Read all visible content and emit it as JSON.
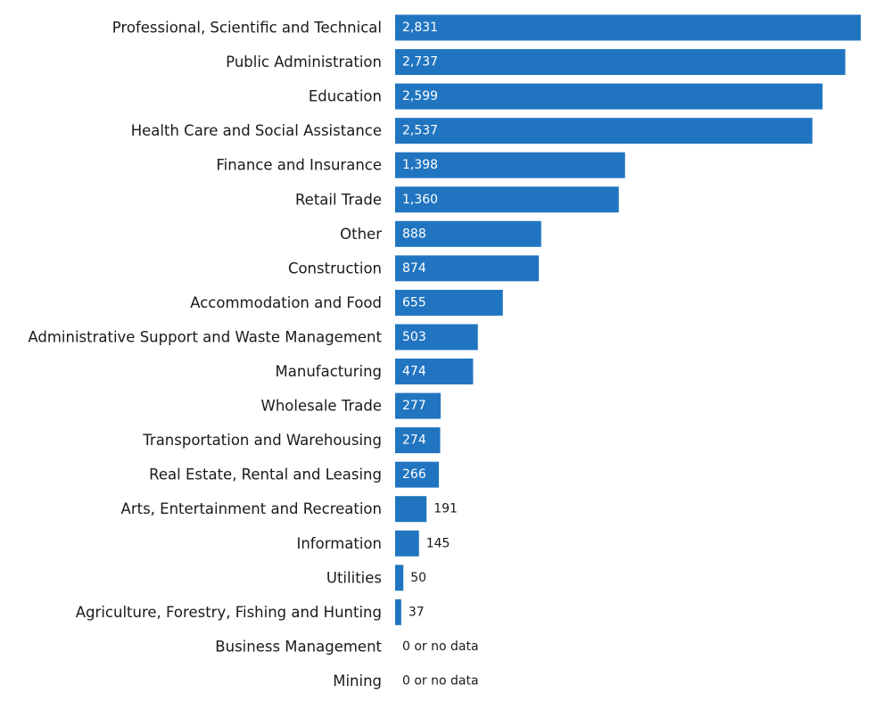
{
  "chart_data": {
    "type": "bar",
    "orientation": "horizontal",
    "categories": [
      "Professional, Scientific and Technical",
      "Public Administration",
      "Education",
      "Health Care and Social Assistance",
      "Finance and Insurance",
      "Retail Trade",
      "Other",
      "Construction",
      "Accommodation and Food",
      "Administrative Support and Waste Management",
      "Manufacturing",
      "Wholesale Trade",
      "Transportation and Warehousing",
      "Real Estate, Rental and Leasing",
      "Arts, Entertainment and Recreation",
      "Information",
      "Utilities",
      "Agriculture, Forestry, Fishing and Hunting",
      "Business Management",
      "Mining"
    ],
    "values": [
      2831,
      2737,
      2599,
      2537,
      1398,
      1360,
      888,
      874,
      655,
      503,
      474,
      277,
      274,
      266,
      191,
      145,
      50,
      37,
      null,
      null
    ],
    "data_labels": [
      "2,831",
      "2,737",
      "2,599",
      "2,537",
      "1,398",
      "1,360",
      "888",
      "874",
      "655",
      "503",
      "474",
      "277",
      "274",
      "266",
      "191",
      "145",
      "50",
      "37",
      "0 or no data",
      "0 or no data"
    ],
    "xlim": [
      0,
      2831
    ],
    "grid": false,
    "legend": "none",
    "bar_color": "#2175c0",
    "label_inside_color": "#ffffff",
    "label_outside_color": "#1a1a1a"
  }
}
